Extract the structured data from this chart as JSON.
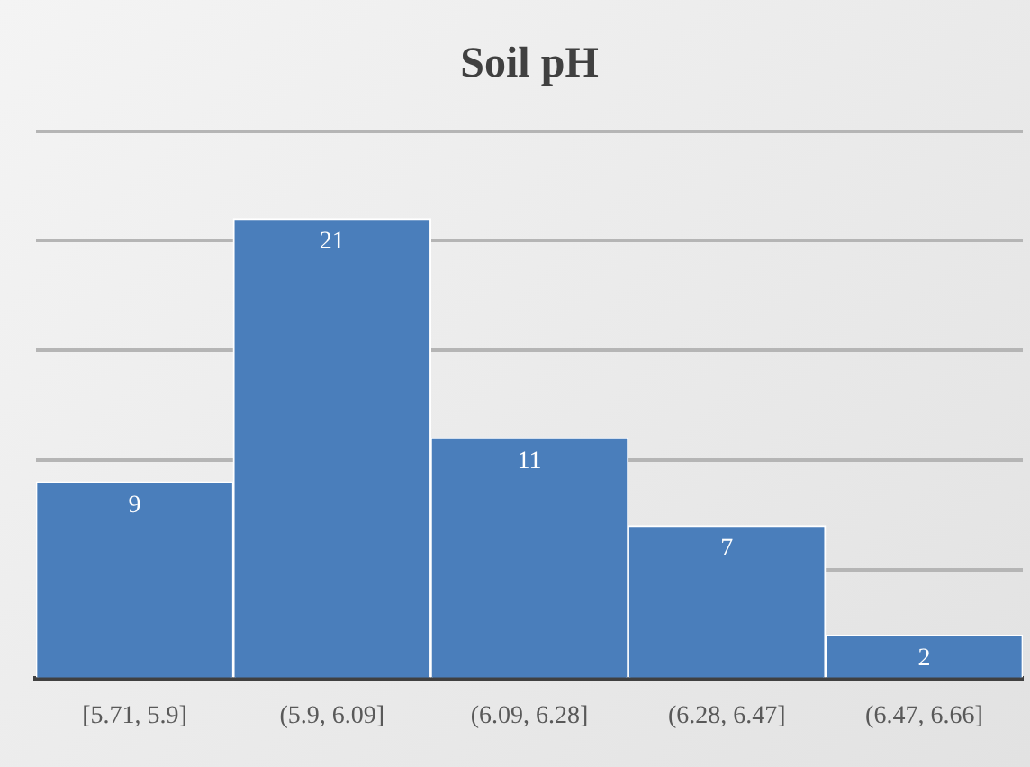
{
  "chart_data": {
    "type": "bar",
    "title": "Soil pH",
    "categories": [
      "[5.71, 5.9]",
      "(5.9, 6.09]",
      "(6.09, 6.28]",
      "(6.28, 6.47]",
      "(6.47, 6.66]"
    ],
    "values": [
      9,
      21,
      11,
      7,
      2
    ],
    "color": "#4a7ebb",
    "ylim": [
      0,
      25
    ],
    "yticks": [
      {
        "value": 0,
        "label": null
      },
      {
        "value": 5,
        "label": null
      },
      {
        "value": 10,
        "label": null
      },
      {
        "value": 15,
        "label": null
      },
      {
        "value": 20,
        "label": null
      },
      {
        "value": 25,
        "label": null
      }
    ],
    "tick_labels": "x",
    "grid": "y",
    "data_labels": true
  }
}
